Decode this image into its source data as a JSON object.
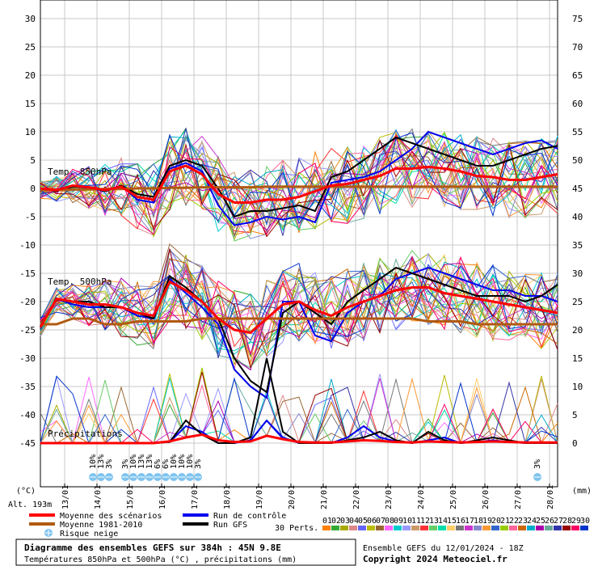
{
  "chart_data": {
    "type": "line",
    "title": "Diagramme des ensembles GEFS sur 384h : 45N 9.8E",
    "subtitle": "Températures 850hPa et 500hPa (°C) , précipitations (mm)",
    "run_info": "Ensemble GEFS du 12/01/2024 - 18Z",
    "copyright": "Copyright 2024 Meteociel.fr",
    "left_unit": "(°C)",
    "right_unit": "(mm)",
    "altitude": "Alt. 193m",
    "ylim_left": [
      -45,
      35
    ],
    "ylim_right": [
      0,
      80
    ],
    "left_ticks": [
      30,
      25,
      20,
      15,
      10,
      5,
      0,
      -5,
      -10,
      -15,
      -20,
      -25,
      -30,
      -35,
      -40,
      -45
    ],
    "right_ticks": [
      75,
      70,
      65,
      60,
      55,
      50,
      45,
      40,
      35,
      30,
      25,
      20,
      15,
      10,
      5,
      0
    ],
    "x_day_labels": [
      "13/01",
      "14/01",
      "15/01",
      "16/01",
      "17/01",
      "18/01",
      "19/01",
      "20/01",
      "21/01",
      "22/01",
      "23/01",
      "24/01",
      "25/01",
      "26/01",
      "27/01",
      "28/01"
    ],
    "section_labels": [
      "Temp. 850hPa",
      "Temp. 500hPa",
      "Précipitations"
    ],
    "x_hours": [
      0,
      12,
      24,
      36,
      48,
      60,
      72,
      84,
      96,
      108,
      120,
      132,
      144,
      156,
      168,
      180,
      192,
      204,
      216,
      228,
      240,
      252,
      264,
      276,
      288,
      300,
      312,
      324,
      336,
      348,
      360,
      372,
      384
    ],
    "series": [
      {
        "name": "Moyenne des scénarios",
        "role": "t850_mean",
        "color": "#ff0000",
        "values": [
          0,
          -0.3,
          0.5,
          0.2,
          -0.3,
          0.3,
          -1.5,
          -2,
          3,
          4,
          2.5,
          -1,
          -2.5,
          -2.5,
          -2,
          -2,
          -1.5,
          -0.5,
          0.5,
          0.8,
          1.5,
          2.2,
          3.5,
          3.5,
          3.8,
          3.5,
          3,
          2.2,
          2,
          1.5,
          1.5,
          2,
          2.5
        ]
      },
      {
        "name": "Moyenne 1981-2010",
        "role": "t850_clim",
        "color": "#b05a10",
        "values": [
          -0.3,
          -0.3,
          -0.2,
          -0.2,
          -0.1,
          -0.1,
          0,
          0,
          0.1,
          0.1,
          0.2,
          0.2,
          0.2,
          0.2,
          0.3,
          0.3,
          0.3,
          0.3,
          0.3,
          0.3,
          0.3,
          0.3,
          0.3,
          0.3,
          0.3,
          0.3,
          0.3,
          0.3,
          0.3,
          0.3,
          0.3,
          0.3,
          0.3
        ]
      },
      {
        "name": "Run de contrôle",
        "role": "t850_control",
        "color": "#0000ee",
        "values": [
          0,
          -0.5,
          0.5,
          0,
          -0.5,
          0.5,
          -2,
          -2.5,
          3.5,
          4.5,
          3,
          -3,
          -6.5,
          -6,
          -5,
          -5.5,
          -5,
          -6,
          1,
          1.5,
          2,
          3,
          5,
          7,
          10,
          9,
          8,
          7,
          6,
          7,
          8,
          8.5,
          7
        ]
      },
      {
        "name": "Run GFS",
        "role": "t850_gfs",
        "color": "#000000",
        "values": [
          0,
          -0.5,
          0.3,
          0.2,
          -0.5,
          0.5,
          -1,
          -1.5,
          4,
          5,
          4,
          0,
          -5,
          -4,
          -4,
          -3.5,
          -3,
          -4,
          2,
          3,
          5,
          7,
          9,
          8,
          7,
          6,
          5,
          4,
          4,
          5,
          6,
          7,
          7.5
        ]
      },
      {
        "name": "Moyenne des scénarios",
        "role": "t500_mean",
        "color": "#ff0000",
        "values": [
          -24.5,
          -19.5,
          -20,
          -20.5,
          -20.5,
          -21,
          -22,
          -22.5,
          -16.5,
          -18,
          -20,
          -23,
          -25,
          -25.5,
          -23,
          -20.5,
          -20,
          -21.5,
          -22.5,
          -21,
          -20,
          -19,
          -18,
          -17.5,
          -17.5,
          -18.5,
          -19,
          -19.5,
          -20,
          -20.5,
          -21,
          -21.5,
          -22
        ]
      },
      {
        "name": "Moyenne 1981-2010",
        "role": "t500_clim",
        "color": "#b05a10",
        "values": [
          -24,
          -24,
          -23,
          -23,
          -24,
          -24,
          -23.5,
          -23.5,
          -23.5,
          -23.5,
          -23,
          -23,
          -23,
          -23,
          -23,
          -23,
          -23,
          -23,
          -23,
          -23,
          -23,
          -23,
          -23,
          -23,
          -23.5,
          -23.5,
          -23.5,
          -24,
          -24,
          -24,
          -24,
          -24,
          -24
        ]
      },
      {
        "name": "Run de contrôle",
        "role": "t500_control",
        "color": "#0000ee",
        "values": [
          -24.5,
          -19.5,
          -20.5,
          -21,
          -21,
          -21,
          -22.5,
          -23,
          -16,
          -18.5,
          -21,
          -24,
          -32,
          -35,
          -37,
          -20,
          -20,
          -26,
          -27,
          -22,
          -20,
          -19,
          -16,
          -15,
          -14,
          -15,
          -16,
          -17,
          -18,
          -18,
          -19,
          -19,
          -20
        ]
      },
      {
        "name": "Run GFS",
        "role": "t500_gfs",
        "color": "#000000",
        "values": [
          -24.5,
          -19.5,
          -20,
          -20,
          -21,
          -21,
          -22,
          -23,
          -15.5,
          -17.5,
          -20,
          -23,
          -30,
          -34,
          -36,
          -22,
          -20,
          -22,
          -24,
          -20,
          -18,
          -16,
          -14,
          -15,
          -16,
          -17,
          -18,
          -19,
          -19,
          -19,
          -20,
          -19,
          -17
        ]
      },
      {
        "name": "Moyenne des scénarios",
        "role": "precip_mean",
        "color": "#ff0000",
        "values": [
          0,
          0,
          0,
          0,
          0,
          0,
          0,
          0,
          0.3,
          1,
          1.5,
          0.5,
          0.2,
          0.3,
          1.3,
          0.7,
          0.2,
          0.1,
          0.1,
          0.3,
          0.5,
          0.4,
          0.2,
          0.1,
          0.3,
          0.2,
          0.1,
          0.2,
          0.3,
          0.2,
          0.1,
          0.1,
          0.1
        ]
      },
      {
        "name": "Run GFS",
        "role": "precip_gfs",
        "color": "#000000",
        "values": [
          0,
          0,
          0,
          0,
          0,
          0,
          0,
          0,
          0.2,
          4,
          1.5,
          0,
          0,
          1,
          15,
          2,
          0,
          0,
          0,
          0.5,
          1,
          2,
          0.5,
          0,
          2,
          0.5,
          0,
          0.5,
          1,
          0.5,
          0,
          0,
          0
        ]
      },
      {
        "name": "Run de contrôle",
        "role": "precip_control",
        "color": "#0000ee",
        "values": [
          0,
          0,
          0,
          0,
          0,
          0,
          0,
          0,
          0.2,
          3,
          2,
          0,
          0,
          0.5,
          4,
          1,
          0,
          0,
          0,
          1,
          3,
          1,
          0.3,
          0,
          0.5,
          1,
          0,
          0.2,
          0.5,
          0.2,
          0,
          0,
          0
        ]
      }
    ],
    "snow_risk": [
      {
        "x": 48,
        "values": [
          "10%",
          "13%",
          "3%"
        ]
      },
      {
        "x": 72,
        "values": [
          "3%",
          "10%",
          "13%",
          "13%",
          "6%",
          "6%"
        ]
      },
      {
        "x": 108,
        "values": [
          "10%",
          "10%",
          "10%",
          "3%"
        ]
      },
      {
        "x": 378,
        "values": [
          "3%"
        ]
      }
    ],
    "legend": {
      "entries": [
        {
          "label": "Moyenne des scénarios",
          "color": "#ff0000"
        },
        {
          "label": "Run de contrôle",
          "color": "#0000ee"
        },
        {
          "label": "Moyenne 1981-2010",
          "color": "#b05a10"
        },
        {
          "label": "Run GFS",
          "color": "#000000"
        }
      ],
      "snow_label": "Risque neige",
      "perts_label": "30 Perts.",
      "perts_numbers": [
        "01",
        "02",
        "03",
        "04",
        "05",
        "06",
        "07",
        "08",
        "09",
        "10",
        "11",
        "12",
        "13",
        "14",
        "15",
        "16",
        "17",
        "18",
        "19",
        "20",
        "21",
        "22",
        "23",
        "24",
        "25",
        "26",
        "27",
        "28",
        "29",
        "30"
      ],
      "perts_colors": [
        "#ff8000",
        "#33aa33",
        "#aaaa00",
        "#dd8888",
        "#6666ff",
        "#bbbb00",
        "#996633",
        "#ff66ff",
        "#00cccc",
        "#9999ff",
        "#cc9966",
        "#ff3333",
        "#66cc66",
        "#00ddaa",
        "#ffcc66",
        "#777777",
        "#cc33cc",
        "#8888cc",
        "#ff9933",
        "#3366cc",
        "#99cc00",
        "#ff6699",
        "#cc6600",
        "#00aacc",
        "#aa00aa",
        "#66aa99",
        "#3333aa",
        "#990000",
        "#ff0066",
        "#0033cc"
      ]
    },
    "grid": true
  }
}
